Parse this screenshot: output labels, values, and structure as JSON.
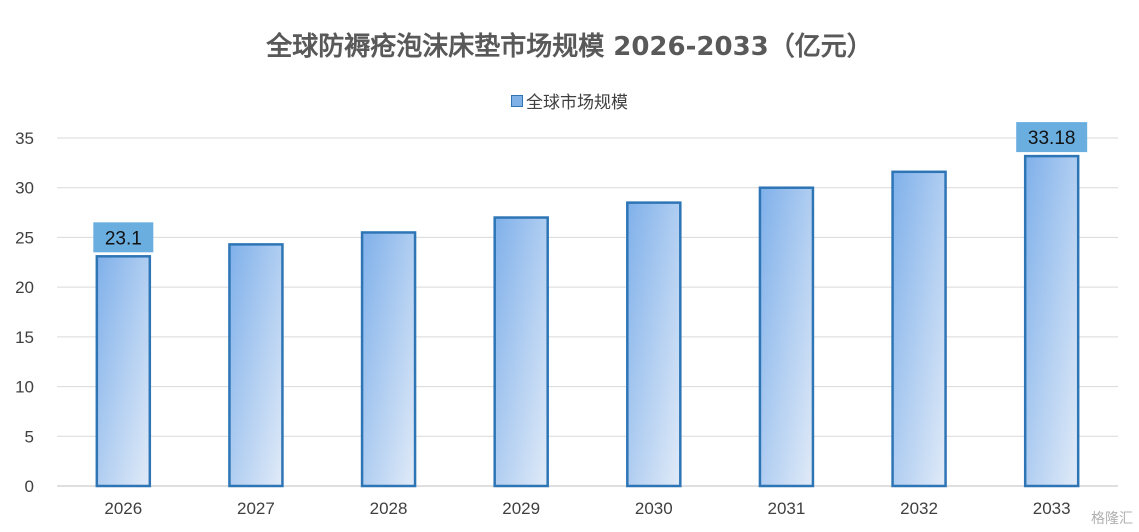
{
  "chart_data": {
    "type": "bar",
    "title": "全球防褥疮泡沫床垫市场规模 2026-2033（亿元）",
    "categories": [
      "2026",
      "2027",
      "2028",
      "2029",
      "2030",
      "2031",
      "2032",
      "2033"
    ],
    "series": [
      {
        "name": "全球市场规模",
        "values": [
          23.1,
          24.3,
          25.5,
          27.0,
          28.5,
          30.0,
          31.6,
          33.18
        ]
      }
    ],
    "data_labels": [
      {
        "index": 0,
        "text": "23.1"
      },
      {
        "index": 7,
        "text": "33.18"
      }
    ],
    "xlabel": "",
    "ylabel": "",
    "ylim": [
      0,
      35
    ],
    "yticks": [
      0,
      5,
      10,
      15,
      20,
      25,
      30,
      35
    ],
    "grid": true,
    "legend_position": "top",
    "colors": {
      "bar_top": "#7fb0ea",
      "bar_bottom": "#dce8f7",
      "bar_border": "#2e75b6",
      "label_bg": "#6aaee0",
      "grid": "#d9d9d9"
    }
  },
  "watermark": "格隆汇"
}
